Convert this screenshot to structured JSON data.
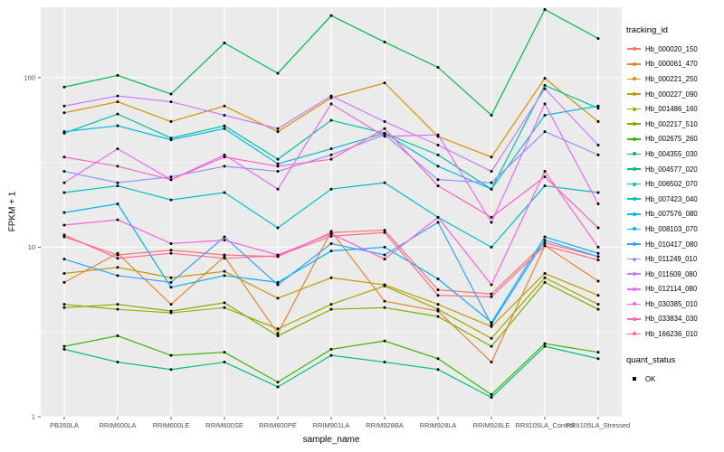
{
  "chart_data": {
    "type": "line",
    "title": "",
    "xlabel": "sample_name",
    "ylabel": "FPKM + 1",
    "yscale": "log10",
    "ylim": [
      1,
      260
    ],
    "yticks": [
      1,
      10,
      100
    ],
    "ytick_labels": [
      "1",
      "10",
      "100"
    ],
    "grid": true,
    "panel_background": "#EBEBEB",
    "gridline_color": "#FFFFFF",
    "point_color": "#000000",
    "legend_position": "right",
    "legend": {
      "color_title": "tracking_id",
      "shape_title": "quant_status",
      "shape_items": [
        "OK"
      ]
    },
    "categories": [
      "PB350LA",
      "RRIM600LA",
      "RRIM600LE",
      "RRIM600SE",
      "RRIM600PE",
      "RRIM901LA",
      "RRIM928BA",
      "RRIM928LA",
      "RRIM928LE",
      "RRII105LA_Control",
      "RRII105LA_Stressed"
    ],
    "series": [
      {
        "name": "Hb_000020_150",
        "color": "#F8766D",
        "values": [
          11.5,
          9.0,
          9.6,
          9.0,
          8.8,
          12.2,
          12.6,
          5.6,
          5.3,
          10.6,
          8.8
        ]
      },
      {
        "name": "Hb_000061_470",
        "color": "#EA8331",
        "values": [
          6.2,
          9.2,
          4.6,
          8.8,
          3.1,
          12.4,
          4.8,
          4.2,
          2.1,
          10.2,
          6.3
        ]
      },
      {
        "name": "Hb_000221_250",
        "color": "#D89000",
        "values": [
          62,
          72,
          55,
          68,
          48,
          76,
          93,
          45,
          34,
          99,
          55
        ]
      },
      {
        "name": "Hb_000227_090",
        "color": "#C09B00",
        "values": [
          7.0,
          7.6,
          6.6,
          7.2,
          5.0,
          6.6,
          6.0,
          4.6,
          3.4,
          7.0,
          5.2
        ]
      },
      {
        "name": "Hb_001486_160",
        "color": "#A3A500",
        "values": [
          4.6,
          4.3,
          4.1,
          4.4,
          3.3,
          4.6,
          5.9,
          4.3,
          2.9,
          6.6,
          4.6
        ]
      },
      {
        "name": "Hb_002217_510",
        "color": "#7CAE00",
        "values": [
          4.4,
          4.6,
          4.2,
          4.7,
          3.0,
          4.3,
          4.4,
          3.9,
          2.6,
          6.2,
          4.3
        ]
      },
      {
        "name": "Hb_002675_260",
        "color": "#39B600",
        "values": [
          2.6,
          3.0,
          2.3,
          2.4,
          1.6,
          2.5,
          2.8,
          2.2,
          1.35,
          2.7,
          2.4
        ]
      },
      {
        "name": "Hb_004355_030",
        "color": "#00BB4E",
        "values": [
          88,
          103,
          80,
          160,
          106,
          232,
          162,
          115,
          60,
          252,
          170
        ]
      },
      {
        "name": "Hb_004577_020",
        "color": "#00BF7D",
        "values": [
          2.5,
          2.1,
          1.9,
          2.1,
          1.5,
          2.3,
          2.1,
          1.9,
          1.3,
          2.6,
          2.2
        ]
      },
      {
        "name": "Hb_006502_070",
        "color": "#00C1A3",
        "values": [
          47,
          61,
          44,
          52,
          33,
          56,
          47,
          35,
          22,
          90,
          66
        ]
      },
      {
        "name": "Hb_007423_040",
        "color": "#00BFC4",
        "values": [
          21,
          23,
          19,
          21,
          13,
          22,
          24,
          15,
          10,
          23,
          21
        ]
      },
      {
        "name": "Hb_007576_080",
        "color": "#00BAE0",
        "values": [
          48,
          52,
          43,
          50,
          31,
          38,
          47,
          30,
          22,
          60,
          68
        ]
      },
      {
        "name": "Hb_008103_070",
        "color": "#00B0F6",
        "values": [
          16,
          18,
          5.8,
          6.8,
          6.2,
          9.5,
          10,
          6.5,
          3.6,
          11.5,
          9.2
        ]
      },
      {
        "name": "Hb_010417_080",
        "color": "#35A2FF",
        "values": [
          8.5,
          6.8,
          6.2,
          11.5,
          6.0,
          10.5,
          9.0,
          14,
          3.5,
          11,
          8.8
        ]
      },
      {
        "name": "Hb_011249_010",
        "color": "#9590FF",
        "values": [
          28,
          24,
          26,
          30,
          28,
          35,
          46,
          25,
          24,
          48,
          35
        ]
      },
      {
        "name": "Hb_011609_080",
        "color": "#C77CFF",
        "values": [
          68,
          78,
          72,
          60,
          50,
          78,
          55,
          40,
          28,
          86,
          40
        ]
      },
      {
        "name": "Hb_012114_080",
        "color": "#E76BF3",
        "values": [
          24,
          38,
          25,
          35,
          22,
          70,
          45,
          46,
          14,
          70,
          18
        ]
      },
      {
        "name": "Hb_030385_010",
        "color": "#FA62DB",
        "values": [
          13.5,
          14.5,
          10.5,
          11,
          9,
          12,
          8.5,
          15,
          6,
          28,
          10
        ]
      },
      {
        "name": "Hb_033834_030",
        "color": "#FF62BC",
        "values": [
          34,
          30,
          25,
          34,
          30,
          33,
          50,
          23,
          15,
          26,
          13
        ]
      },
      {
        "name": "Hb_166236_010",
        "color": "#FF6A98",
        "values": [
          11.8,
          8.6,
          9.2,
          8.6,
          8.9,
          11.6,
          12.2,
          5.2,
          5.1,
          10.2,
          8.4
        ]
      }
    ]
  }
}
